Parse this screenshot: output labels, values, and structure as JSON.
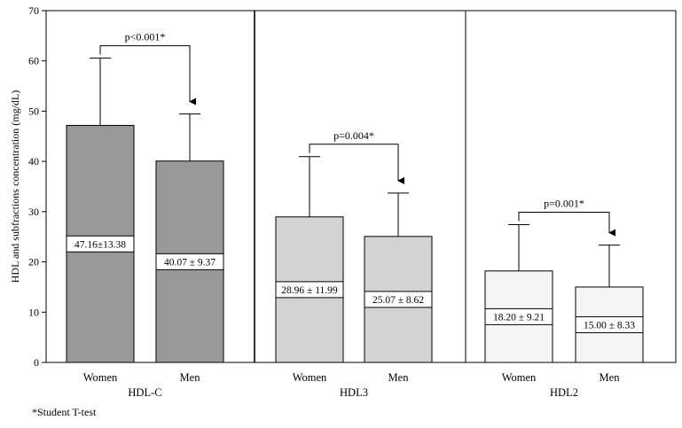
{
  "chart_data": {
    "type": "bar",
    "ylabel": "HDL and subfractions concentration (mg/dL)",
    "ylim": [
      0,
      70
    ],
    "yticks": [
      0,
      10,
      20,
      30,
      40,
      50,
      60,
      70
    ],
    "groups": [
      {
        "name": "HDL-C",
        "fill": "#999999",
        "significance": "p<0.001*",
        "bars": [
          {
            "category": "Women",
            "value": 47.16,
            "sd": 13.38,
            "label": "47.16±13.38"
          },
          {
            "category": "Men",
            "value": 40.07,
            "sd": 9.37,
            "label": "40.07 ± 9.37"
          }
        ]
      },
      {
        "name": "HDL3",
        "fill": "#d3d3d3",
        "significance": "p=0.004*",
        "bars": [
          {
            "category": "Women",
            "value": 28.96,
            "sd": 11.99,
            "label": "28.96 ± 11.99"
          },
          {
            "category": "Men",
            "value": 25.07,
            "sd": 8.62,
            "label": "25.07 ± 8.62"
          }
        ]
      },
      {
        "name": "HDL2",
        "fill": "#f5f5f5",
        "significance": "p=0.001*",
        "bars": [
          {
            "category": "Women",
            "value": 18.2,
            "sd": 9.21,
            "label": "18.20 ± 9.21"
          },
          {
            "category": "Men",
            "value": 15.0,
            "sd": 8.33,
            "label": "15.00 ± 8.33"
          }
        ]
      }
    ],
    "footnote": "*Student T-test"
  }
}
